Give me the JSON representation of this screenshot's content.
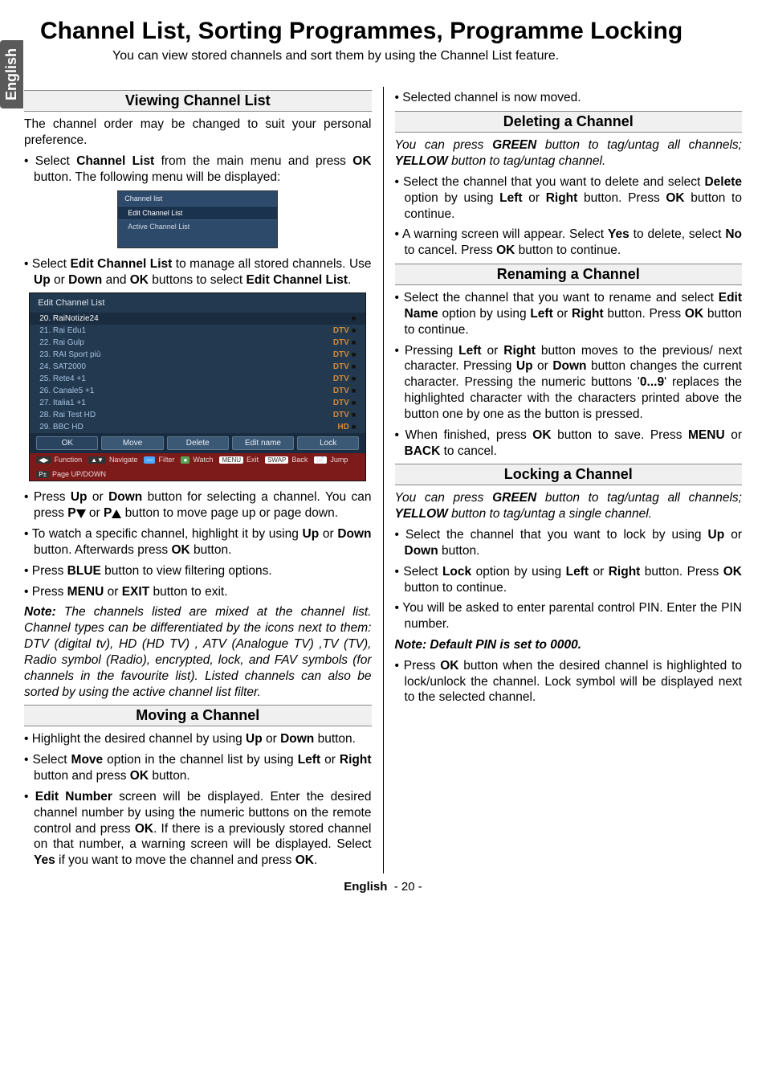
{
  "side_tab": "English",
  "title": "Channel List, Sorting Programmes, Programme Locking",
  "subtitle": "You can view stored channels and sort them by using the Channel List feature.",
  "left": {
    "viewing": {
      "heading": "Viewing Channel List",
      "intro": "The channel order may be changed to suit your personal preference.",
      "b_select_pre": "Select ",
      "b_select_bold1": "Channel List",
      "b_select_mid": " from the main menu and press ",
      "b_select_bold2": "OK",
      "b_select_end": " button. The following menu will be displayed:",
      "shot1": {
        "header": "Channel list",
        "item1": "Edit Channel List",
        "item2": "Active Channel List"
      },
      "b2_pre": "Select ",
      "b2_bold1": "Edit Channel List",
      "b2_mid1": " to manage all stored channels. Use ",
      "b2_bold2": "Up",
      "b2_mid2": " or ",
      "b2_bold3": "Down",
      "b2_mid3": " and ",
      "b2_bold4": "OK",
      "b2_mid4": " buttons to select ",
      "b2_bold5": "Edit Channel List",
      "b2_end": ".",
      "shot2": {
        "header": "Edit Channel List",
        "rows": [
          {
            "name": "20. RaiNotizie24",
            "tag": "",
            "icon": "■",
            "sel": true
          },
          {
            "name": "21. Rai Edu1",
            "tag": "DTV",
            "icon": "■"
          },
          {
            "name": "22. Rai Gulp",
            "tag": "DTV",
            "icon": "■"
          },
          {
            "name": "23. RAI Sport più",
            "tag": "DTV",
            "icon": "■"
          },
          {
            "name": "24. SAT2000",
            "tag": "DTV",
            "icon": "■"
          },
          {
            "name": "25. Rete4 +1",
            "tag": "DTV",
            "icon": "■"
          },
          {
            "name": "26. Canale5 +1",
            "tag": "DTV",
            "icon": "■"
          },
          {
            "name": "27. Italia1 +1",
            "tag": "DTV",
            "icon": "■"
          },
          {
            "name": "28. Rai Test HD",
            "tag": "DTV",
            "icon": "■"
          },
          {
            "name": "29. BBC HD",
            "tag": "HD",
            "icon": "■"
          }
        ],
        "buttons": [
          "OK",
          "Move",
          "Delete",
          "Edit name",
          "Lock"
        ],
        "hints": [
          {
            "badge": "◀▶",
            "cls": "b-dark",
            "label": "Function"
          },
          {
            "badge": "▲▼",
            "cls": "b-dark",
            "label": "Navigate"
          },
          {
            "badge": "—",
            "cls": "b-blue",
            "label": "Filter"
          },
          {
            "badge": "●",
            "cls": "b-green",
            "label": "Watch"
          },
          {
            "badge": "MENU",
            "cls": "",
            "label": "Exit"
          },
          {
            "badge": "SWAP",
            "cls": "",
            "label": "Back"
          },
          {
            "badge": "📄",
            "cls": "",
            "label": "Jump"
          },
          {
            "badge": "P±",
            "cls": "b-dark",
            "label": "Page UP/DOWN"
          }
        ]
      },
      "b3_pre": "Press ",
      "b3_bold1": "Up",
      "b3_mid1": " or ",
      "b3_bold2": "Down",
      "b3_mid2": " button for selecting a channel. You can press ",
      "b3_bold3": "P",
      "b3_mid3": " or ",
      "b3_bold4": "P",
      "b3_end": " button to move page up or page down.",
      "b4_pre": "To watch a specific channel, highlight it by using ",
      "b4_bold1": "Up",
      "b4_mid1": " or ",
      "b4_bold2": "Down",
      "b4_mid2": " button. Afterwards press ",
      "b4_bold3": "OK",
      "b4_end": " button.",
      "b5_pre": "Press ",
      "b5_bold1": "BLUE",
      "b5_end": " button to view filtering options.",
      "b6_pre": "Press ",
      "b6_bold1": "MENU",
      "b6_mid1": " or ",
      "b6_bold2": "EXIT",
      "b6_end": " button to exit.",
      "note_bold": "Note:",
      "note_rest": " The channels listed are mixed at the channel list. Channel types can be differentiated by the icons next to them: DTV (digital tv), HD (HD TV) , ATV (Analogue TV) ,TV (TV), Radio symbol (Radio), encrypted, lock, and FAV symbols (for channels in the favourite list). Listed channels can also be sorted by using the active channel list filter."
    },
    "moving": {
      "heading": "Moving a Channel",
      "b1_pre": "Highlight the desired channel by using ",
      "b1_bold1": "Up",
      "b1_mid1": " or ",
      "b1_bold2": "Down",
      "b1_end": " button.",
      "b2_pre": "Select ",
      "b2_bold1": "Move",
      "b2_mid1": " option in the channel list by using ",
      "b2_bold2": "Left",
      "b2_mid2": " or ",
      "b2_bold3": "Right",
      "b2_mid3": " button and press ",
      "b2_bold4": "OK",
      "b2_end": " button.",
      "b3_bold1": "Edit Number",
      "b3_mid1": " screen will be displayed. Enter the desired channel number by using the numeric buttons on the remote control and press ",
      "b3_bold2": "OK",
      "b3_mid2": ". If there is a previously stored channel on that number, a warning screen will be displayed. Select ",
      "b3_bold3": "Yes",
      "b3_mid3": " if you want to move the channel and press ",
      "b3_bold4": "OK",
      "b3_end": "."
    }
  },
  "right": {
    "moved": "Selected channel is now moved.",
    "deleting": {
      "heading": "Deleting a Channel",
      "intro_pre": "You can press ",
      "intro_b1": "GREEN",
      "intro_mid1": " button to tag/untag all channels; ",
      "intro_b2": "YELLOW",
      "intro_end": " button to tag/untag channel.",
      "b1_pre": "Select the channel that you want to delete and select ",
      "b1_bold1": "Delete",
      "b1_mid1": " option by using ",
      "b1_bold2": "Left",
      "b1_mid2": " or ",
      "b1_bold3": "Right",
      "b1_mid3": " button. Press ",
      "b1_bold4": "OK",
      "b1_end": " button to continue.",
      "b2_pre": "A warning screen will appear. Select ",
      "b2_bold1": "Yes",
      "b2_mid1": " to delete, select ",
      "b2_bold2": "No",
      "b2_mid2": " to cancel. Press ",
      "b2_bold3": "OK",
      "b2_end": " button to continue."
    },
    "renaming": {
      "heading": "Renaming a Channel",
      "b1_pre": "Select the channel that you want to rename and select ",
      "b1_bold1": "Edit Name",
      "b1_mid1": " option by using ",
      "b1_bold2": "Left",
      "b1_mid2": " or ",
      "b1_bold3": "Right",
      "b1_mid3": " button. Press ",
      "b1_bold4": "OK",
      "b1_end": " button to continue.",
      "b2_pre": "Pressing ",
      "b2_bold1": "Left",
      "b2_mid1": " or ",
      "b2_bold2": "Right",
      "b2_mid2": " button moves to the previous/ next character. Pressing ",
      "b2_bold3": "Up",
      "b2_mid3": " or ",
      "b2_bold4": "Down",
      "b2_mid4": " button changes the current character. Pressing the numeric buttons '",
      "b2_bold5": "0...9",
      "b2_end": "' replaces the highlighted character with the characters printed above the button one by one as the button is pressed.",
      "b3_pre": "When finished, press ",
      "b3_bold1": "OK",
      "b3_mid1": " button to save. Press ",
      "b3_bold2": "MENU",
      "b3_mid2": " or ",
      "b3_bold3": "BACK",
      "b3_end": " to cancel."
    },
    "locking": {
      "heading": "Locking a Channel",
      "intro_pre": "You can press ",
      "intro_b1": "GREEN",
      "intro_mid1": " button to tag/untag all channels; ",
      "intro_b2": "YELLOW",
      "intro_end": " button to tag/untag a single channel.",
      "b1_pre": "Select the channel that you want to lock by using ",
      "b1_bold1": "Up",
      "b1_mid1": " or ",
      "b1_bold2": "Down",
      "b1_end": " button.",
      "b2_pre": "Select ",
      "b2_bold1": "Lock",
      "b2_mid1": " option by using ",
      "b2_bold2": "Left",
      "b2_mid2": " or ",
      "b2_bold3": "Right",
      "b2_mid3": " button. Press ",
      "b2_bold4": "OK",
      "b2_end": " button to continue.",
      "b3": "You will be asked to enter parental control PIN. Enter the PIN number.",
      "note": "Note: Default PIN is set to 0000.",
      "b4_pre": "Press ",
      "b4_bold1": "OK",
      "b4_end": " button when the desired channel is highlighted to lock/unlock the channel. Lock symbol will be displayed next to the selected channel."
    }
  },
  "footer": {
    "lang": "English",
    "page": "- 20 -"
  }
}
